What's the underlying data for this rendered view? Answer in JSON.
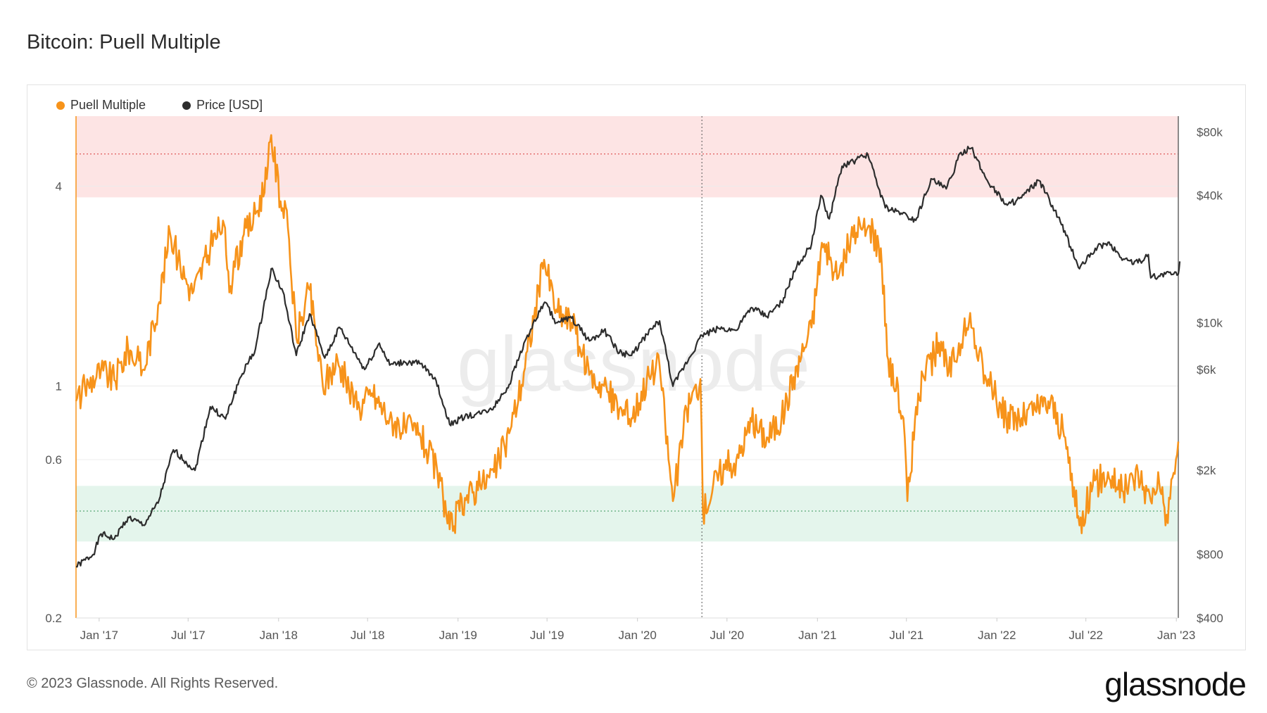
{
  "title": "Bitcoin: Puell Multiple",
  "legend": [
    {
      "label": "Puell Multiple",
      "color": "#f7931a"
    },
    {
      "label": "Price [USD]",
      "color": "#2d2d2d"
    }
  ],
  "footer": "© 2023 Glassnode. All Rights Reserved.",
  "brand": "glassnode",
  "watermark": "glassnode",
  "chart_data": {
    "type": "line",
    "y_left": {
      "scale": "log",
      "range": [
        0.2,
        6.5
      ],
      "ticks": [
        {
          "v": 0.2,
          "label": "0.2"
        },
        {
          "v": 0.6,
          "label": "0.6"
        },
        {
          "v": 1,
          "label": "1"
        },
        {
          "v": 4,
          "label": "4"
        }
      ]
    },
    "y_right": {
      "scale": "log",
      "range": [
        400,
        95000
      ],
      "ticks": [
        {
          "v": 400,
          "label": "$400"
        },
        {
          "v": 800,
          "label": "$800"
        },
        {
          "v": 2000,
          "label": "$2k"
        },
        {
          "v": 6000,
          "label": "$6k"
        },
        {
          "v": 10000,
          "label": "$10k"
        },
        {
          "v": 40000,
          "label": "$40k"
        },
        {
          "v": 80000,
          "label": "$80k"
        }
      ]
    },
    "x_ticks": [
      "Jan '17",
      "Jul '17",
      "Jan '18",
      "Jul '18",
      "Jan '19",
      "Jul '19",
      "Jan '20",
      "Jul '20",
      "Jan '21",
      "Jul '21",
      "Jan '22",
      "Jul '22",
      "Jan '23"
    ],
    "x_range": [
      "2016-11-15",
      "2023-01-05"
    ],
    "bands": [
      {
        "axis": "left",
        "from": 3.7,
        "to": 6.5,
        "color": "#fde4e4",
        "line": 5.0,
        "line_color": "#e05a5a"
      },
      {
        "axis": "left",
        "from": 0.34,
        "to": 0.5,
        "color": "#e4f5ec",
        "line": 0.42,
        "line_color": "#4aa06a"
      }
    ],
    "annotation_date": "2020-05-11",
    "series": [
      {
        "name": "Puell Multiple",
        "axis": "left",
        "color": "#f7931a",
        "points": [
          [
            "2016-11-15",
            0.9
          ],
          [
            "2016-12-10",
            1.02
          ],
          [
            "2017-01-05",
            1.12
          ],
          [
            "2017-02-01",
            1.04
          ],
          [
            "2017-03-01",
            1.3
          ],
          [
            "2017-04-01",
            1.12
          ],
          [
            "2017-05-01",
            1.75
          ],
          [
            "2017-05-25",
            2.9
          ],
          [
            "2017-06-15",
            2.3
          ],
          [
            "2017-07-10",
            1.9
          ],
          [
            "2017-08-15",
            2.6
          ],
          [
            "2017-09-10",
            3.15
          ],
          [
            "2017-09-25",
            2.0
          ],
          [
            "2017-10-20",
            2.8
          ],
          [
            "2017-11-15",
            3.3
          ],
          [
            "2017-12-08",
            4.2
          ],
          [
            "2017-12-17",
            5.7
          ],
          [
            "2018-01-05",
            3.6
          ],
          [
            "2018-01-20",
            3.0
          ],
          [
            "2018-02-06",
            1.4
          ],
          [
            "2018-03-05",
            1.95
          ],
          [
            "2018-04-01",
            1.0
          ],
          [
            "2018-05-01",
            1.2
          ],
          [
            "2018-06-10",
            0.85
          ],
          [
            "2018-07-10",
            0.95
          ],
          [
            "2018-08-15",
            0.8
          ],
          [
            "2018-09-15",
            0.75
          ],
          [
            "2018-10-15",
            0.72
          ],
          [
            "2018-11-20",
            0.55
          ],
          [
            "2018-12-15",
            0.37
          ],
          [
            "2019-01-15",
            0.46
          ],
          [
            "2019-02-15",
            0.5
          ],
          [
            "2019-03-15",
            0.55
          ],
          [
            "2019-04-15",
            0.72
          ],
          [
            "2019-05-15",
            1.1
          ],
          [
            "2019-06-25",
            2.4
          ],
          [
            "2019-07-20",
            1.7
          ],
          [
            "2019-08-20",
            1.55
          ],
          [
            "2019-09-25",
            1.08
          ],
          [
            "2019-10-25",
            1.0
          ],
          [
            "2019-11-25",
            0.85
          ],
          [
            "2019-12-20",
            0.8
          ],
          [
            "2020-01-20",
            1.05
          ],
          [
            "2020-02-15",
            1.15
          ],
          [
            "2020-03-13",
            0.45
          ],
          [
            "2020-04-10",
            0.85
          ],
          [
            "2020-05-08",
            1.05
          ],
          [
            "2020-05-13",
            0.42
          ],
          [
            "2020-06-15",
            0.55
          ],
          [
            "2020-07-20",
            0.6
          ],
          [
            "2020-08-20",
            0.78
          ],
          [
            "2020-09-20",
            0.7
          ],
          [
            "2020-10-20",
            0.8
          ],
          [
            "2020-11-20",
            1.15
          ],
          [
            "2020-12-20",
            1.5
          ],
          [
            "2021-01-10",
            2.7
          ],
          [
            "2021-02-10",
            2.1
          ],
          [
            "2021-03-10",
            2.8
          ],
          [
            "2021-04-13",
            3.0
          ],
          [
            "2021-05-10",
            2.6
          ],
          [
            "2021-05-25",
            1.2
          ],
          [
            "2021-06-25",
            0.8
          ],
          [
            "2021-07-03",
            0.45
          ],
          [
            "2021-07-25",
            0.95
          ],
          [
            "2021-09-05",
            1.35
          ],
          [
            "2021-09-25",
            1.1
          ],
          [
            "2021-10-25",
            1.45
          ],
          [
            "2021-11-10",
            1.5
          ],
          [
            "2021-12-10",
            1.05
          ],
          [
            "2022-01-20",
            0.8
          ],
          [
            "2022-02-20",
            0.8
          ],
          [
            "2022-03-20",
            0.85
          ],
          [
            "2022-04-20",
            0.9
          ],
          [
            "2022-05-20",
            0.7
          ],
          [
            "2022-06-18",
            0.38
          ],
          [
            "2022-07-15",
            0.5
          ],
          [
            "2022-08-15",
            0.55
          ],
          [
            "2022-09-15",
            0.48
          ],
          [
            "2022-10-15",
            0.55
          ],
          [
            "2022-11-10",
            0.45
          ],
          [
            "2022-11-25",
            0.55
          ],
          [
            "2022-12-10",
            0.38
          ],
          [
            "2023-01-05",
            0.68
          ]
        ]
      },
      {
        "name": "Price [USD]",
        "axis": "right",
        "color": "#2d2d2d",
        "points": [
          [
            "2016-11-15",
            700
          ],
          [
            "2016-12-20",
            800
          ],
          [
            "2017-01-05",
            1000
          ],
          [
            "2017-02-01",
            950
          ],
          [
            "2017-03-01",
            1200
          ],
          [
            "2017-04-01",
            1100
          ],
          [
            "2017-05-01",
            1400
          ],
          [
            "2017-06-01",
            2500
          ],
          [
            "2017-07-15",
            2000
          ],
          [
            "2017-08-15",
            4000
          ],
          [
            "2017-09-15",
            3500
          ],
          [
            "2017-10-15",
            5500
          ],
          [
            "2017-11-15",
            7500
          ],
          [
            "2017-12-17",
            18000
          ],
          [
            "2018-01-10",
            14000
          ],
          [
            "2018-02-06",
            7000
          ],
          [
            "2018-03-05",
            11000
          ],
          [
            "2018-04-05",
            6800
          ],
          [
            "2018-05-05",
            9500
          ],
          [
            "2018-06-25",
            6000
          ],
          [
            "2018-07-25",
            8000
          ],
          [
            "2018-08-15",
            6300
          ],
          [
            "2018-09-15",
            6500
          ],
          [
            "2018-10-15",
            6400
          ],
          [
            "2018-11-15",
            5500
          ],
          [
            "2018-12-15",
            3300
          ],
          [
            "2019-01-15",
            3600
          ],
          [
            "2019-02-15",
            3700
          ],
          [
            "2019-03-15",
            4000
          ],
          [
            "2019-04-15",
            5100
          ],
          [
            "2019-05-15",
            8000
          ],
          [
            "2019-06-26",
            12500
          ],
          [
            "2019-07-20",
            10000
          ],
          [
            "2019-08-20",
            10500
          ],
          [
            "2019-09-25",
            8200
          ],
          [
            "2019-10-25",
            9200
          ],
          [
            "2019-11-25",
            7200
          ],
          [
            "2019-12-20",
            7000
          ],
          [
            "2020-01-20",
            8800
          ],
          [
            "2020-02-15",
            10200
          ],
          [
            "2020-03-13",
            5000
          ],
          [
            "2020-04-15",
            6800
          ],
          [
            "2020-05-11",
            8700
          ],
          [
            "2020-06-15",
            9400
          ],
          [
            "2020-07-20",
            9200
          ],
          [
            "2020-08-20",
            11800
          ],
          [
            "2020-09-20",
            10700
          ],
          [
            "2020-10-20",
            12500
          ],
          [
            "2020-11-20",
            18500
          ],
          [
            "2020-12-20",
            23500
          ],
          [
            "2021-01-08",
            40000
          ],
          [
            "2021-01-25",
            31000
          ],
          [
            "2021-02-20",
            55000
          ],
          [
            "2021-03-15",
            58000
          ],
          [
            "2021-04-14",
            62000
          ],
          [
            "2021-05-19",
            35000
          ],
          [
            "2021-06-20",
            33000
          ],
          [
            "2021-07-20",
            30500
          ],
          [
            "2021-08-20",
            48000
          ],
          [
            "2021-09-20",
            43000
          ],
          [
            "2021-10-20",
            64000
          ],
          [
            "2021-11-10",
            67000
          ],
          [
            "2021-12-10",
            48000
          ],
          [
            "2022-01-22",
            36000
          ],
          [
            "2022-02-20",
            39000
          ],
          [
            "2022-03-28",
            47000
          ],
          [
            "2022-05-10",
            30000
          ],
          [
            "2022-06-18",
            18000
          ],
          [
            "2022-07-20",
            22500
          ],
          [
            "2022-08-15",
            24000
          ],
          [
            "2022-09-15",
            20000
          ],
          [
            "2022-10-15",
            19200
          ],
          [
            "2022-11-05",
            21000
          ],
          [
            "2022-11-10",
            16300
          ],
          [
            "2022-12-10",
            17000
          ],
          [
            "2023-01-05",
            17000
          ],
          [
            "2023-01-08",
            19500
          ]
        ]
      }
    ]
  }
}
